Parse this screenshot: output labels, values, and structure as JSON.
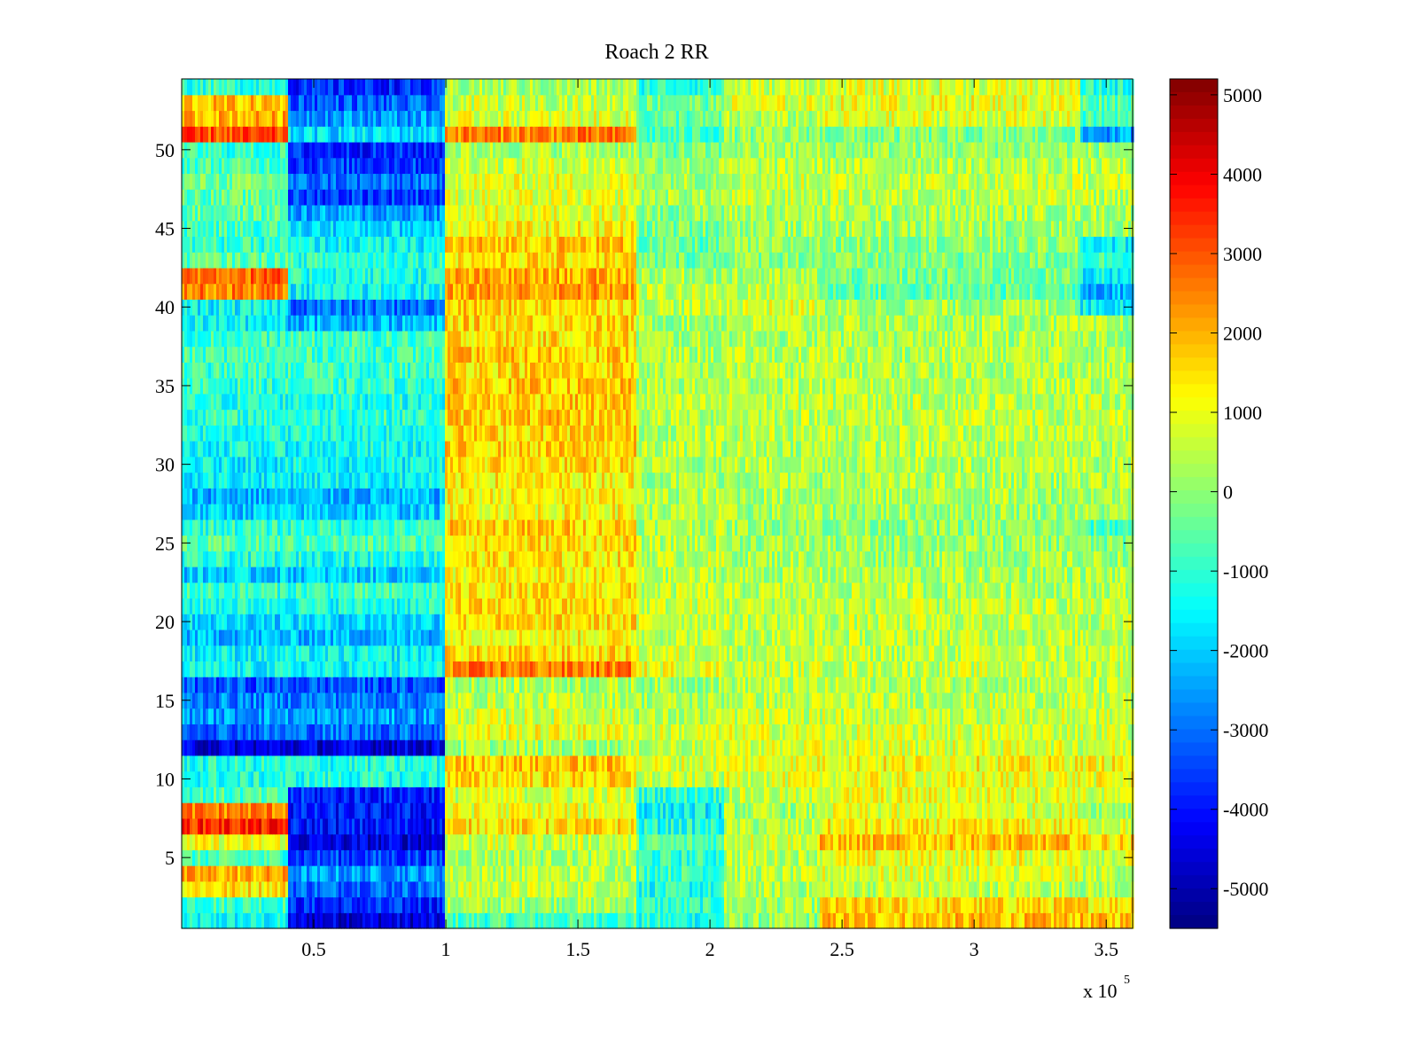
{
  "chart_data": {
    "type": "heatmap",
    "title": "Roach 2 RR",
    "xlabel": "",
    "ylabel": "",
    "x_multiplier_base": "x 10",
    "x_multiplier_exponent": "5",
    "xlim": [
      0,
      3.6
    ],
    "ylim": [
      0.5,
      54.5
    ],
    "xticks": [
      {
        "value": 0.5,
        "label": "0.5"
      },
      {
        "value": 1,
        "label": "1"
      },
      {
        "value": 1.5,
        "label": "1.5"
      },
      {
        "value": 2,
        "label": "2"
      },
      {
        "value": 2.5,
        "label": "2.5"
      },
      {
        "value": 3,
        "label": "3"
      },
      {
        "value": 3.5,
        "label": "3.5"
      }
    ],
    "yticks": [
      {
        "value": 5,
        "label": "5"
      },
      {
        "value": 10,
        "label": "10"
      },
      {
        "value": 15,
        "label": "15"
      },
      {
        "value": 20,
        "label": "20"
      },
      {
        "value": 25,
        "label": "25"
      },
      {
        "value": 30,
        "label": "30"
      },
      {
        "value": 35,
        "label": "35"
      },
      {
        "value": 40,
        "label": "40"
      },
      {
        "value": 45,
        "label": "45"
      },
      {
        "value": 50,
        "label": "50"
      }
    ],
    "colorbar": {
      "colormap": "jet",
      "clim": [
        -5500,
        5200
      ],
      "ticks": [
        {
          "value": 5000,
          "label": "5000"
        },
        {
          "value": 4000,
          "label": "4000"
        },
        {
          "value": 3000,
          "label": "3000"
        },
        {
          "value": 2000,
          "label": "2000"
        },
        {
          "value": 1000,
          "label": "1000"
        },
        {
          "value": 0,
          "label": "0"
        },
        {
          "value": -1000,
          "label": "-1000"
        },
        {
          "value": -2000,
          "label": "-2000"
        },
        {
          "value": -3000,
          "label": "-3000"
        },
        {
          "value": -4000,
          "label": "-4000"
        },
        {
          "value": -5000,
          "label": "-5000"
        }
      ]
    },
    "rows": 54,
    "segments_x": [
      0,
      0.4,
      1.0,
      1.72,
      2.05,
      2.42,
      3.4,
      3.6
    ],
    "row_segment_means": {
      "1": [
        -1500,
        -4500,
        -800,
        -1200,
        0,
        1800,
        1800
      ],
      "2": [
        -800,
        -3800,
        200,
        -1000,
        200,
        1500,
        1500
      ],
      "3": [
        1500,
        -3000,
        600,
        -1200,
        300,
        500,
        300
      ],
      "4": [
        2000,
        -2500,
        500,
        -800,
        400,
        800,
        500
      ],
      "5": [
        -800,
        -3500,
        300,
        -1000,
        500,
        1000,
        800
      ],
      "6": [
        1000,
        -4500,
        600,
        -600,
        800,
        1800,
        1500
      ],
      "7": [
        3500,
        -4000,
        1500,
        -1200,
        300,
        1200,
        800
      ],
      "8": [
        2500,
        -4000,
        1000,
        -1500,
        200,
        800,
        300
      ],
      "9": [
        -800,
        -3800,
        700,
        -1000,
        500,
        1000,
        600
      ],
      "10": [
        -1200,
        -1200,
        1500,
        500,
        800,
        1000,
        1000
      ],
      "11": [
        -1200,
        -1200,
        1800,
        800,
        1000,
        1200,
        1200
      ],
      "12": [
        -4500,
        -4500,
        200,
        500,
        800,
        800,
        700
      ],
      "13": [
        -3000,
        -3000,
        1000,
        700,
        800,
        700,
        700
      ],
      "14": [
        -2500,
        -2500,
        700,
        300,
        600,
        600,
        600
      ],
      "15": [
        -2800,
        -2800,
        500,
        300,
        500,
        500,
        500
      ],
      "16": [
        -3300,
        -3300,
        300,
        200,
        400,
        400,
        400
      ],
      "17": [
        -1500,
        -1500,
        2500,
        1000,
        600,
        600,
        600
      ],
      "18": [
        -1500,
        -1500,
        1500,
        700,
        500,
        500,
        500
      ],
      "19": [
        -2200,
        -2200,
        1200,
        600,
        500,
        500,
        500
      ],
      "20": [
        -1800,
        -1800,
        1500,
        700,
        500,
        500,
        500
      ],
      "21": [
        -1200,
        -1200,
        1500,
        600,
        500,
        500,
        500
      ],
      "22": [
        -900,
        -900,
        1400,
        500,
        400,
        400,
        400
      ],
      "23": [
        -2000,
        -2000,
        1200,
        400,
        300,
        300,
        300
      ],
      "24": [
        -1200,
        -1200,
        1400,
        500,
        300,
        200,
        200
      ],
      "25": [
        -700,
        -700,
        1500,
        400,
        200,
        100,
        -200
      ],
      "26": [
        -1000,
        -1000,
        1700,
        400,
        200,
        0,
        -800
      ],
      "27": [
        -2000,
        -2000,
        1200,
        300,
        200,
        200,
        200
      ],
      "28": [
        -2300,
        -2300,
        1200,
        300,
        300,
        300,
        300
      ],
      "29": [
        -1500,
        -1500,
        1300,
        300,
        300,
        300,
        300
      ],
      "30": [
        -1500,
        -1500,
        1500,
        300,
        400,
        400,
        400
      ],
      "31": [
        -1400,
        -1400,
        1600,
        400,
        400,
        400,
        400
      ],
      "32": [
        -1200,
        -1200,
        1600,
        400,
        500,
        500,
        500
      ],
      "33": [
        -1000,
        -1000,
        1700,
        400,
        500,
        500,
        500
      ],
      "34": [
        -1200,
        -1200,
        1700,
        400,
        500,
        500,
        500
      ],
      "35": [
        -1000,
        -1000,
        1700,
        300,
        400,
        400,
        400
      ],
      "36": [
        -900,
        -900,
        1600,
        300,
        400,
        400,
        400
      ],
      "37": [
        -800,
        -800,
        1700,
        300,
        400,
        400,
        300
      ],
      "38": [
        -900,
        -900,
        1500,
        200,
        300,
        300,
        200
      ],
      "39": [
        -1500,
        -2200,
        1600,
        200,
        400,
        300,
        200
      ],
      "40": [
        -1500,
        -3000,
        1600,
        500,
        800,
        200,
        -1500
      ],
      "41": [
        2500,
        -1500,
        2200,
        500,
        500,
        -500,
        -2200
      ],
      "42": [
        2800,
        -1200,
        2000,
        300,
        200,
        -300,
        -1500
      ],
      "43": [
        -500,
        -1000,
        1500,
        -300,
        0,
        -200,
        -800
      ],
      "44": [
        -1000,
        -1500,
        1800,
        -500,
        0,
        0,
        -1500
      ],
      "45": [
        -800,
        -1800,
        1200,
        -200,
        200,
        200,
        200
      ],
      "46": [
        -500,
        -2500,
        900,
        0,
        300,
        300,
        300
      ],
      "47": [
        -500,
        -3500,
        800,
        300,
        500,
        500,
        500
      ],
      "48": [
        -300,
        -3000,
        900,
        300,
        600,
        600,
        600
      ],
      "49": [
        -700,
        -3500,
        700,
        200,
        400,
        400,
        400
      ],
      "50": [
        -1000,
        -3800,
        300,
        -300,
        200,
        100,
        100
      ],
      "51": [
        3000,
        -1800,
        2500,
        -800,
        0,
        -200,
        -2500
      ],
      "52": [
        2000,
        -2500,
        800,
        -500,
        300,
        800,
        -800
      ],
      "53": [
        1800,
        -3200,
        600,
        -300,
        800,
        1000,
        -500
      ],
      "54": [
        -1000,
        -3800,
        200,
        -1000,
        600,
        800,
        -1200
      ]
    }
  }
}
